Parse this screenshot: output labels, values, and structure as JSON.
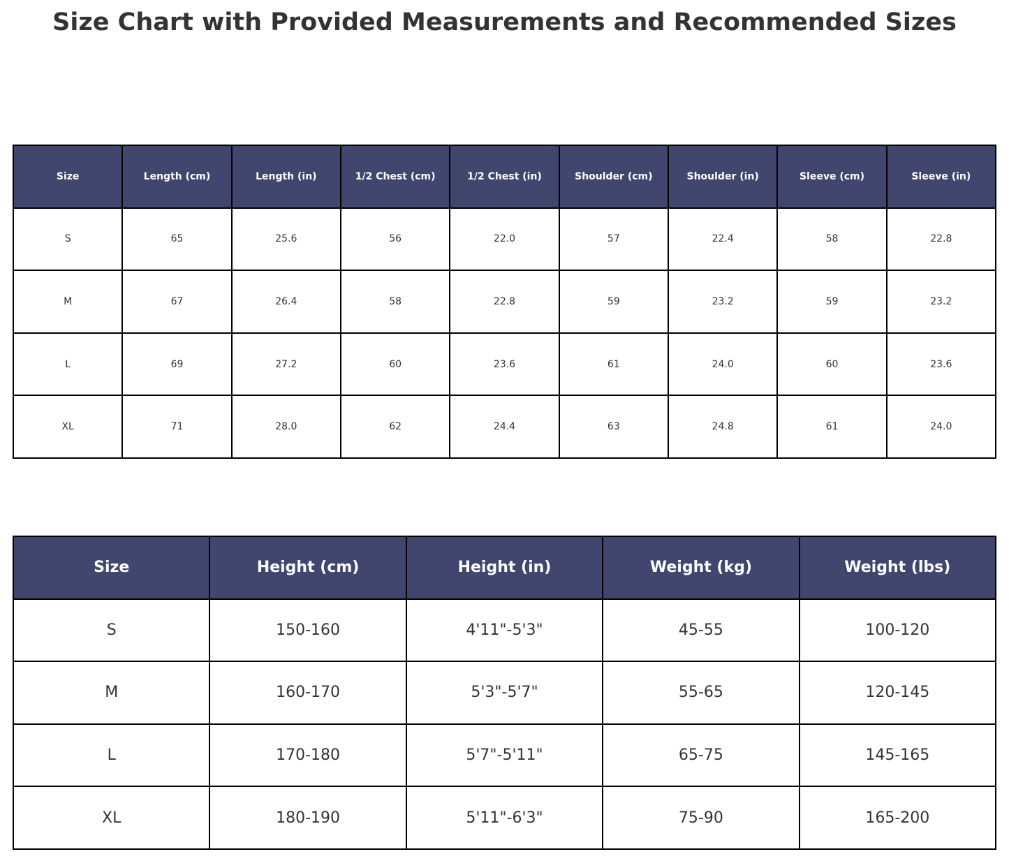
{
  "title": "Size Chart with Provided Measurements and Recommended Sizes",
  "tables": [
    {
      "header": [
        "Size",
        "Length (cm)",
        "Length (in)",
        "1/2 Chest (cm)",
        "1/2 Chest (in)",
        "Shoulder (cm)",
        "Shoulder (in)",
        "Sleeve (cm)",
        "Sleeve (in)"
      ],
      "rows": [
        [
          "S",
          "65",
          "25.6",
          "56",
          "22.0",
          "57",
          "22.4",
          "58",
          "22.8"
        ],
        [
          "M",
          "67",
          "26.4",
          "58",
          "22.8",
          "59",
          "23.2",
          "59",
          "23.2"
        ],
        [
          "L",
          "69",
          "27.2",
          "60",
          "23.6",
          "61",
          "24.0",
          "60",
          "23.6"
        ],
        [
          "XL",
          "71",
          "28.0",
          "62",
          "24.4",
          "63",
          "24.8",
          "61",
          "24.0"
        ]
      ]
    },
    {
      "header": [
        "Size",
        "Height (cm)",
        "Height (in)",
        "Weight (kg)",
        "Weight (lbs)"
      ],
      "rows": [
        [
          "S",
          "150-160",
          "4'11\"-5'3\"",
          "45-55",
          "100-120"
        ],
        [
          "M",
          "160-170",
          "5'3\"-5'7\"",
          "55-65",
          "120-145"
        ],
        [
          "L",
          "170-180",
          "5'7\"-5'11\"",
          "65-75",
          "145-165"
        ],
        [
          "XL",
          "180-190",
          "5'11\"-6'3\"",
          "75-90",
          "165-200"
        ]
      ]
    }
  ]
}
